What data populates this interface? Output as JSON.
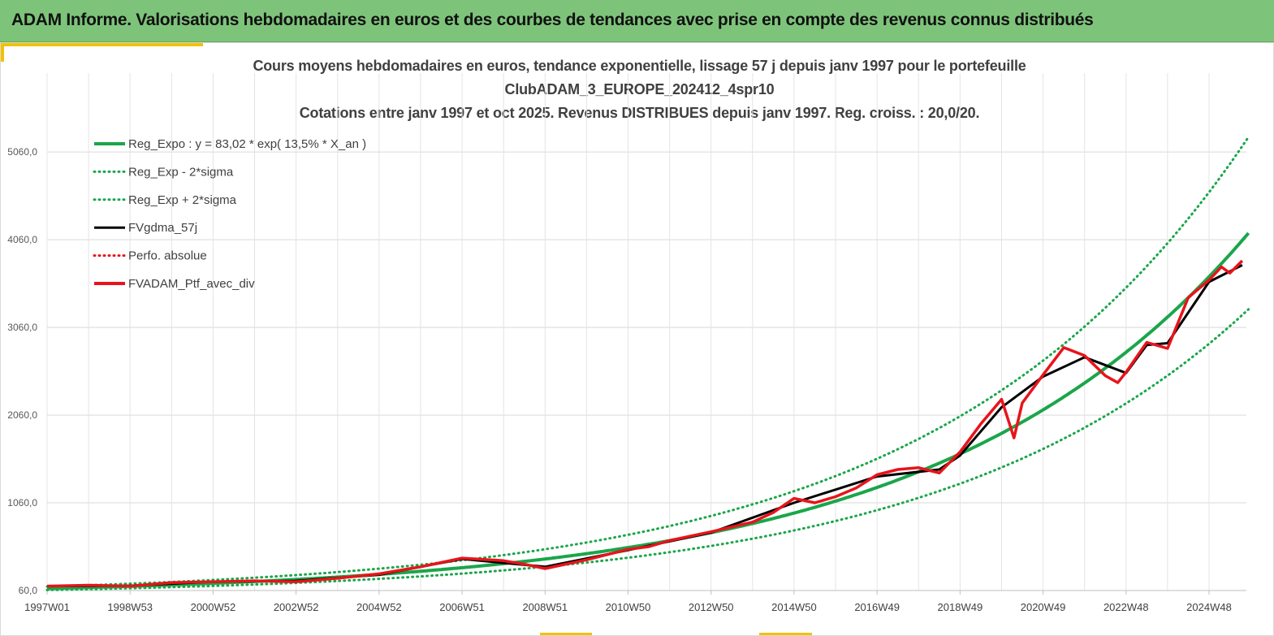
{
  "header": {
    "title": "ADAM Informe. Valorisations hebdomadaires en euros et des courbes de tendances avec prise en compte des revenus connus distribués"
  },
  "colors": {
    "banner": "#7dc47a",
    "accent": "#f2c200",
    "regression": "#1aa64a",
    "smoothed": "#000000",
    "portfolio": "#e8141b"
  },
  "chart_data": {
    "type": "line",
    "title_lines": [
      "Cours moyens hebdomadaires  en euros, tendance exponentielle, lissage 57 j depuis janv 1997 pour le portefeuille",
      "ClubADAM_3_EUROPE_202412_4spr10",
      "Cotations  entre janv 1997 et oct 2025. Revenus DISTRIBUES  depuis janv 1997. Reg. croiss. : 20,0/20."
    ],
    "x_start_year": 1997.0,
    "x_end_year": 2025.8,
    "xlim": [
      1997.0,
      2025.9
    ],
    "ylim": [
      60,
      5960
    ],
    "y_ticks": [
      "60,0",
      "1060,0",
      "2060,0",
      "3060,0",
      "4060,0",
      "5060,0"
    ],
    "y_tick_values": [
      60,
      1060,
      2060,
      3060,
      4060,
      5060
    ],
    "x_ticks": [
      "1997W01",
      "1998W53",
      "2000W52",
      "2002W52",
      "2004W52",
      "2006W51",
      "2008W51",
      "2010W50",
      "2012W50",
      "2014W50",
      "2016W49",
      "2018W49",
      "2020W49",
      "2022W48",
      "2024W48"
    ],
    "x_tick_values": [
      1997.0,
      1999.0,
      2001.0,
      2003.0,
      2005.0,
      2007.0,
      2009.0,
      2011.0,
      2013.0,
      2015.0,
      2017.0,
      2019.0,
      2021.0,
      2023.0,
      2025.0
    ],
    "regression": {
      "a": 83.02,
      "rate": 0.135,
      "minus2sigma_factor": 0.79,
      "plus2sigma_factor": 1.265
    },
    "legend": [
      {
        "label": "Reg_Expo : y = 83,02 * exp( 13,5% *  X_an )",
        "color": "#1aa64a",
        "style": "solid-thick"
      },
      {
        "label": "Reg_Exp - 2*sigma",
        "color": "#1aa64a",
        "style": "dotted"
      },
      {
        "label": "Reg_Exp + 2*sigma",
        "color": "#1aa64a",
        "style": "dotted"
      },
      {
        "label": "FVgdma_57j",
        "color": "#000000",
        "style": "solid"
      },
      {
        "label": "Perfo. absolue",
        "color": "#e8141b",
        "style": "dotted"
      },
      {
        "label": "FVADAM_Ptf_avec_div",
        "color": "#e8141b",
        "style": "solid-thick"
      }
    ],
    "series": [
      {
        "name": "FVADAM_Ptf_avec_div",
        "x": [
          1997.0,
          1998.0,
          1999.0,
          2000.0,
          2001.0,
          2002.0,
          2003.0,
          2004.0,
          2005.0,
          2006.0,
          2007.0,
          2008.0,
          2008.5,
          2009.0,
          2010.0,
          2011.0,
          2011.5,
          2012.0,
          2013.0,
          2014.0,
          2014.5,
          2015.0,
          2015.5,
          2016.0,
          2016.5,
          2017.0,
          2017.5,
          2018.0,
          2018.5,
          2019.0,
          2019.5,
          2020.0,
          2020.3,
          2020.5,
          2021.0,
          2021.5,
          2022.0,
          2022.5,
          2022.8,
          2023.0,
          2023.5,
          2024.0,
          2024.5,
          2025.0,
          2025.3,
          2025.5,
          2025.8
        ],
        "y": [
          110,
          120,
          110,
          150,
          160,
          170,
          160,
          200,
          250,
          330,
          430,
          400,
          360,
          310,
          410,
          530,
          560,
          630,
          730,
          840,
          950,
          1110,
          1060,
          1130,
          1230,
          1380,
          1440,
          1460,
          1400,
          1640,
          1960,
          2240,
          1800,
          2200,
          2520,
          2830,
          2740,
          2510,
          2430,
          2550,
          2890,
          2820,
          3400,
          3600,
          3750,
          3680,
          3820
        ]
      },
      {
        "name": "FVgdma_57j",
        "x": [
          1997.0,
          1999.0,
          2001.0,
          2003.0,
          2005.0,
          2007.0,
          2009.0,
          2011.0,
          2013.0,
          2015.0,
          2017.0,
          2018.5,
          2019.0,
          2020.0,
          2021.0,
          2022.0,
          2023.0,
          2023.5,
          2024.0,
          2025.0,
          2025.8
        ],
        "y": [
          110,
          115,
          160,
          170,
          240,
          420,
          330,
          520,
          720,
          1060,
          1360,
          1440,
          1600,
          2150,
          2500,
          2720,
          2540,
          2860,
          2880,
          3580,
          3770
        ]
      }
    ]
  }
}
